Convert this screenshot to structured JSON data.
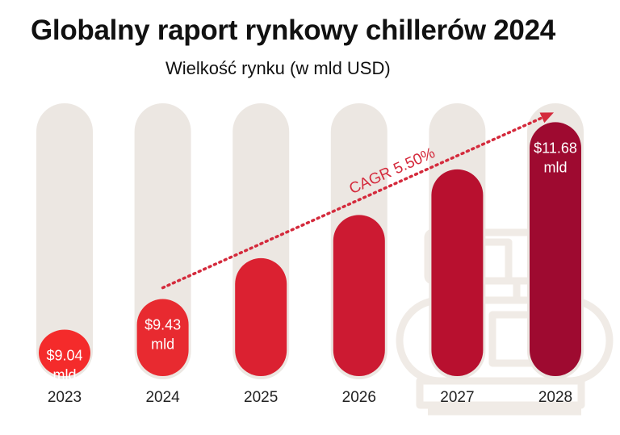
{
  "chart_data": {
    "type": "bar",
    "title": "Globalny raport rynkowy chillerów 2024",
    "subtitle": "Wielkość rynku (w mld USD)",
    "categories": [
      "2023",
      "2024",
      "2025",
      "2026",
      "2027",
      "2028"
    ],
    "values": [
      9.04,
      9.43,
      9.95,
      10.5,
      11.08,
      11.68
    ],
    "value_labels": [
      "$9.04",
      "$9.43",
      "",
      "",
      "",
      "$11.68"
    ],
    "unit_labels": [
      "mld",
      "mld",
      "",
      "",
      "",
      "mld"
    ],
    "bar_colors": [
      "#f42b2b",
      "#e82a30",
      "#db2131",
      "#cc1a32",
      "#b8102f",
      "#9e0a30"
    ],
    "track_color": "#ece7e2",
    "ylim": [
      8.45,
      11.92
    ],
    "grid": false,
    "annotation": {
      "text": "CAGR 5.50%",
      "from": "2024",
      "to": "2028",
      "color": "#d42a3c"
    }
  }
}
